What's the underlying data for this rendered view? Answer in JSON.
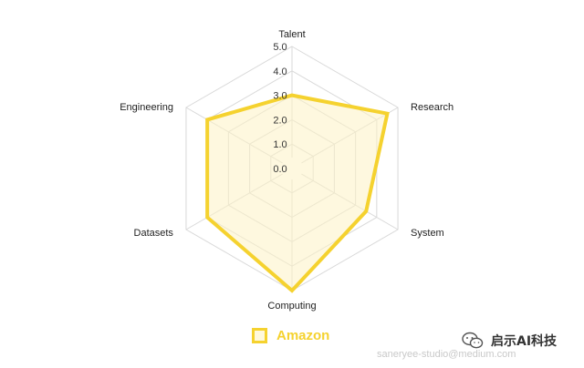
{
  "chart_data": {
    "type": "radar",
    "axes": [
      "Talent",
      "Research",
      "System",
      "Computing",
      "Datasets",
      "Engineering"
    ],
    "series": [
      {
        "name": "Amazon",
        "values": [
          3.0,
          4.5,
          3.5,
          5.0,
          4.0,
          4.0
        ]
      }
    ],
    "rlim": [
      0,
      5.0
    ],
    "ticks": [
      "0.0",
      "1.0",
      "2.0",
      "3.0",
      "4.0",
      "5.0"
    ],
    "tick_values": [
      0,
      1,
      2,
      3,
      4,
      5
    ],
    "grid": true,
    "legend_position": "bottom",
    "colors": {
      "series": "#f5d22f",
      "fill": "#fdf3c4",
      "grid": "#d9d9d9"
    }
  },
  "watermark": {
    "left_text": "saneryee-studio@medium.com",
    "wechat_text": "启示AI科技",
    "wechat_icon": "wechat-icon"
  }
}
